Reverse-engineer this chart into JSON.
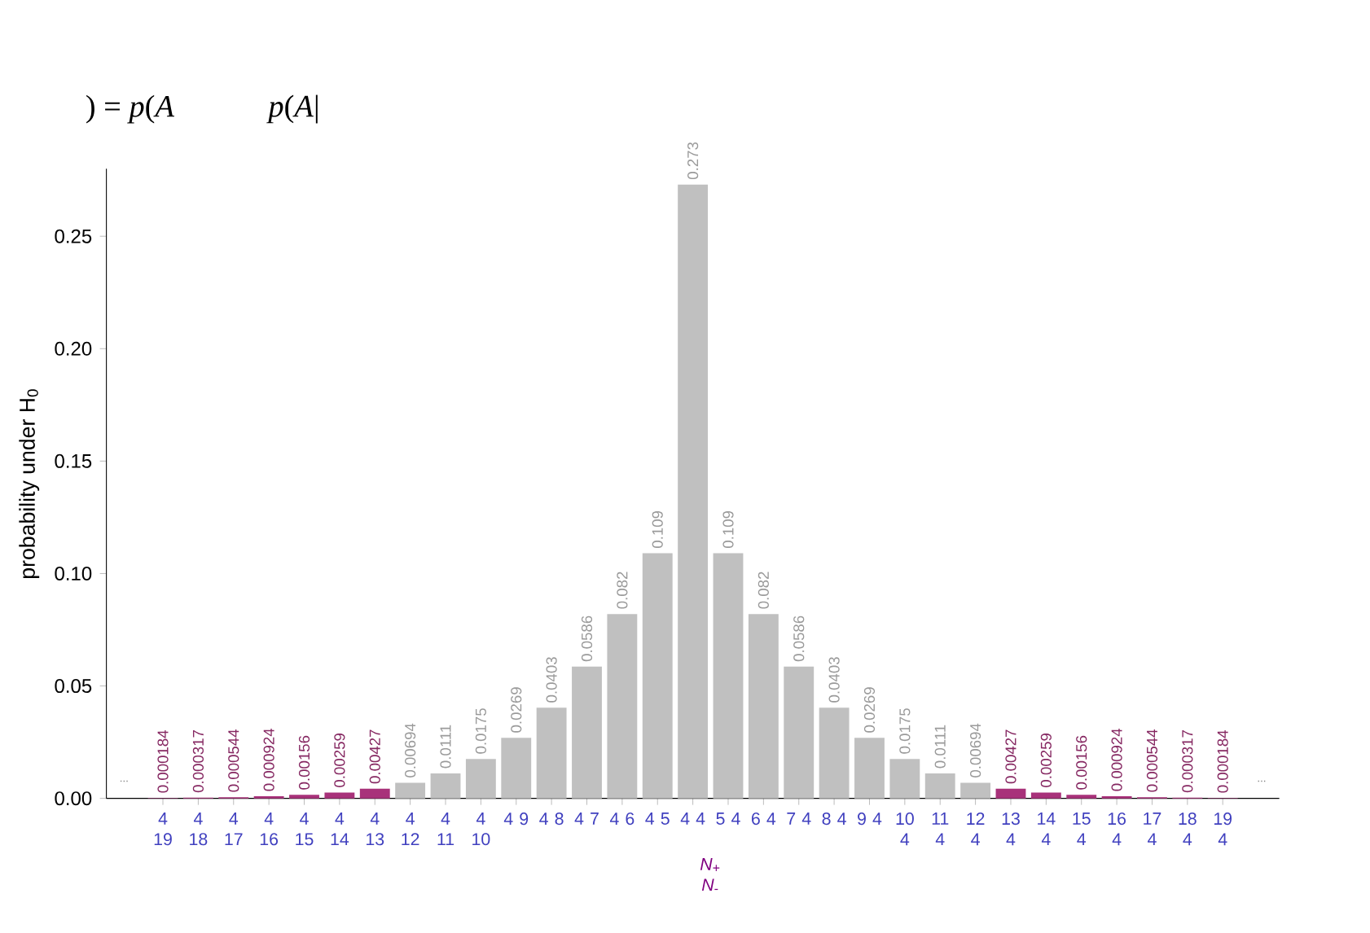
{
  "chart_data": {
    "type": "bar",
    "categories": [
      "4 19",
      "4 18",
      "4 17",
      "4 16",
      "4 15",
      "4 14",
      "4 13",
      "4 12",
      "4 11",
      "4 10",
      "4 9",
      "4 8",
      "4 7",
      "4 6",
      "4 5",
      "4 4",
      "5 4",
      "6 4",
      "7 4",
      "8 4",
      "9 4",
      "10 4",
      "11 4",
      "12 4",
      "13 4",
      "14 4",
      "15 4",
      "16 4",
      "17 4",
      "18 4",
      "19 4"
    ],
    "values": [
      0.000184,
      0.000317,
      0.000544,
      0.000924,
      0.00156,
      0.00259,
      0.00427,
      0.00694,
      0.0111,
      0.0175,
      0.0269,
      0.0403,
      0.0586,
      0.082,
      0.109,
      0.273,
      0.109,
      0.082,
      0.0586,
      0.0403,
      0.0269,
      0.0175,
      0.0111,
      0.00694,
      0.00427,
      0.00259,
      0.00156,
      0.000924,
      0.000544,
      0.000317,
      0.000184
    ],
    "value_labels": [
      "0.000184",
      "0.000317",
      "0.000544",
      "0.000924",
      "0.00156",
      "0.00259",
      "0.00427",
      "0.00694",
      "0.0111",
      "0.0175",
      "0.0269",
      "0.0403",
      "0.0586",
      "0.082",
      "0.109",
      "0.273",
      "0.109",
      "0.082",
      "0.0586",
      "0.0403",
      "0.0269",
      "0.0175",
      "0.0111",
      "0.00694",
      "0.00427",
      "0.00259",
      "0.00156",
      "0.000924",
      "0.000544",
      "0.000317",
      "0.000184"
    ],
    "colors": [
      "#a8327a",
      "#a8327a",
      "#a8327a",
      "#a8327a",
      "#a8327a",
      "#a8327a",
      "#a8327a",
      "#c0c0c0",
      "#c0c0c0",
      "#c0c0c0",
      "#c0c0c0",
      "#c0c0c0",
      "#c0c0c0",
      "#c0c0c0",
      "#c0c0c0",
      "#c0c0c0",
      "#c0c0c0",
      "#c0c0c0",
      "#c0c0c0",
      "#c0c0c0",
      "#c0c0c0",
      "#c0c0c0",
      "#c0c0c0",
      "#c0c0c0",
      "#a8327a",
      "#a8327a",
      "#a8327a",
      "#a8327a",
      "#a8327a",
      "#a8327a",
      "#a8327a"
    ],
    "xlabel": "*N*$_{+}$ *N*$_{-}$",
    "ylabel": "probability under H$_{0}$",
    "ylim": [
      0,
      0.28
    ],
    "yticks": [
      {
        "value": 0,
        "label": "0.00"
      },
      {
        "value": 0.05,
        "label": "0.05"
      },
      {
        "value": 0.1,
        "label": "0.10"
      },
      {
        "value": 0.15,
        "label": "0.15"
      },
      {
        "value": 0.2,
        "label": "0.20"
      },
      {
        "value": 0.25,
        "label": "0.25"
      }
    ],
    "annotations": [
      ") = *p*(*A*",
      "*p*(*A*|",
      "...",
      "..."
    ]
  }
}
